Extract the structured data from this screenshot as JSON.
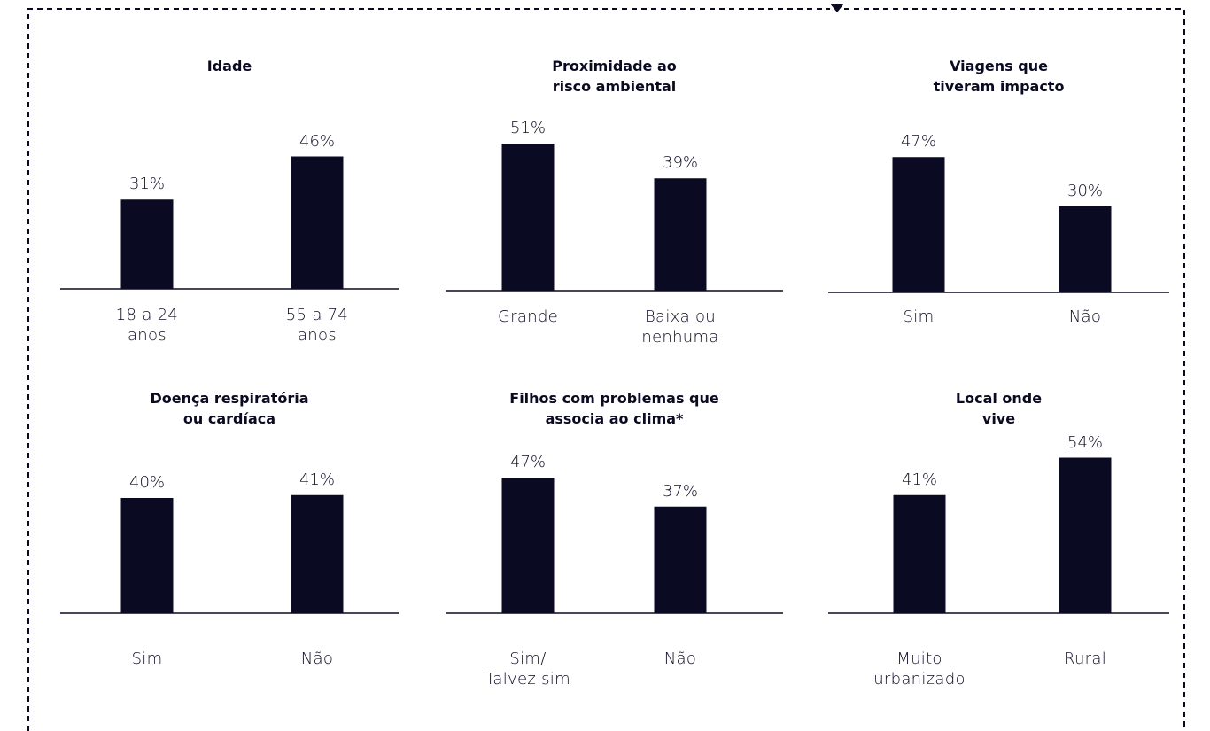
{
  "chart_data": [
    {
      "type": "bar",
      "title": "Idade",
      "categories": [
        "18 a 24\nanos",
        "55 a 74\nanos"
      ],
      "values": [
        31,
        46
      ],
      "value_labels": [
        "31%",
        "46%"
      ],
      "color": "#0b0a23"
    },
    {
      "type": "bar",
      "title": "Proximidade ao\nrisco ambiental",
      "categories": [
        "Grande",
        "Baixa ou\nnenhuma"
      ],
      "values": [
        51,
        39
      ],
      "value_labels": [
        "51%",
        "39%"
      ],
      "color": "#0b0a23"
    },
    {
      "type": "bar",
      "title": "Viagens que\ntiveram impacto",
      "categories": [
        "Sim",
        "Não"
      ],
      "values": [
        47,
        30
      ],
      "value_labels": [
        "47%",
        "30%"
      ],
      "color": "#0b0a23"
    },
    {
      "type": "bar",
      "title": "Doença respiratória\nou cardíaca",
      "categories": [
        "Sim",
        "Não"
      ],
      "values": [
        40,
        41
      ],
      "value_labels": [
        "40%",
        "41%"
      ],
      "color": "#0b0a23"
    },
    {
      "type": "bar",
      "title": "Filhos com problemas que\nassocia ao clima*",
      "categories": [
        "Sim/\nTalvez sim",
        "Não"
      ],
      "values": [
        47,
        37
      ],
      "value_labels": [
        "47%",
        "37%"
      ],
      "color": "#0b0a23"
    },
    {
      "type": "bar",
      "title": "Local onde\nvive",
      "categories": [
        "Muito\nurbanizado",
        "Rural"
      ],
      "values": [
        41,
        54
      ],
      "value_labels": [
        "41%",
        "54%"
      ],
      "color": "#0b0a23"
    }
  ]
}
